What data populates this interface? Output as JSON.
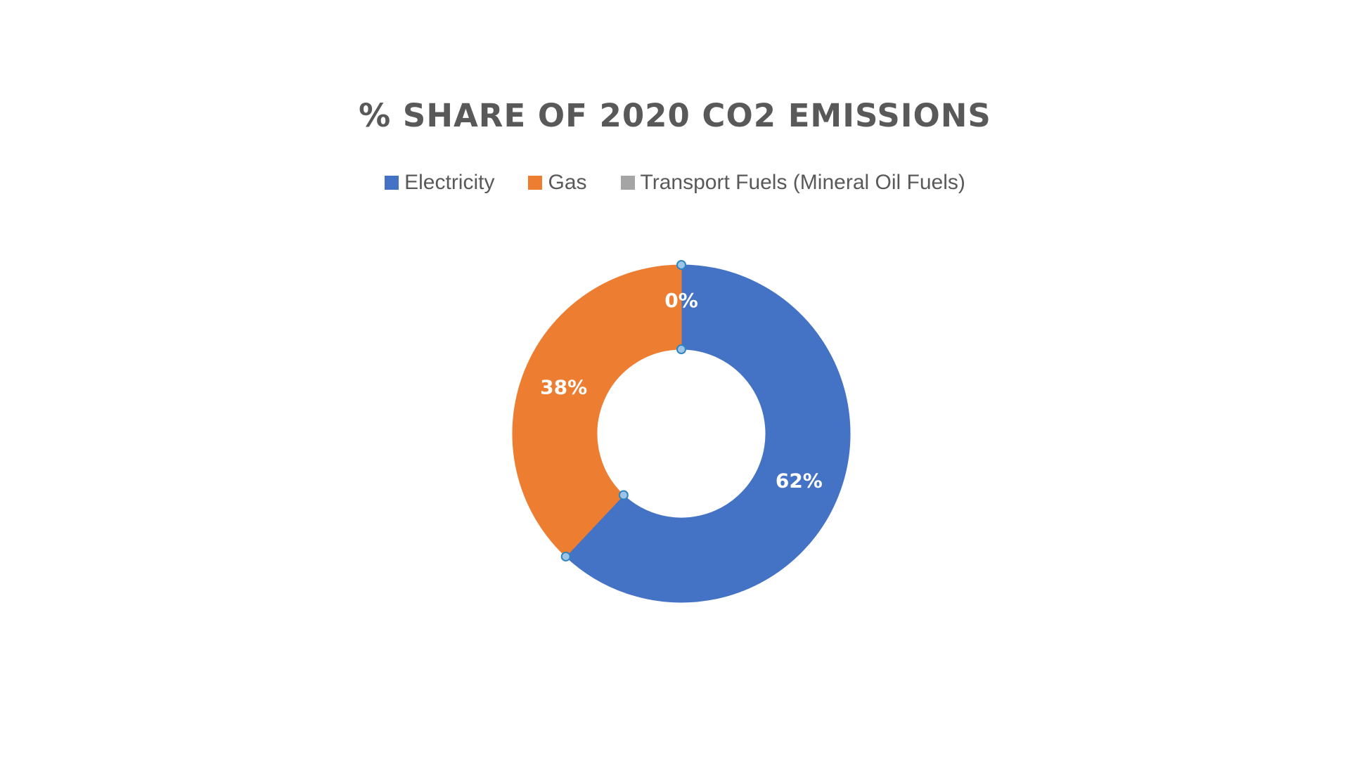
{
  "chart_data": {
    "type": "pie",
    "title": "% SHARE OF 2020 CO2 EMISSIONS",
    "categories": [
      "Electricity",
      "Gas",
      "Transport Fuels (Mineral Oil Fuels)"
    ],
    "values": [
      62,
      38,
      0
    ],
    "labels": [
      "62%",
      "38%",
      "0%"
    ],
    "colors": [
      "#4472C4",
      "#ED7D31",
      "#A5A5A5"
    ],
    "legend_position": "top",
    "donut": true
  }
}
